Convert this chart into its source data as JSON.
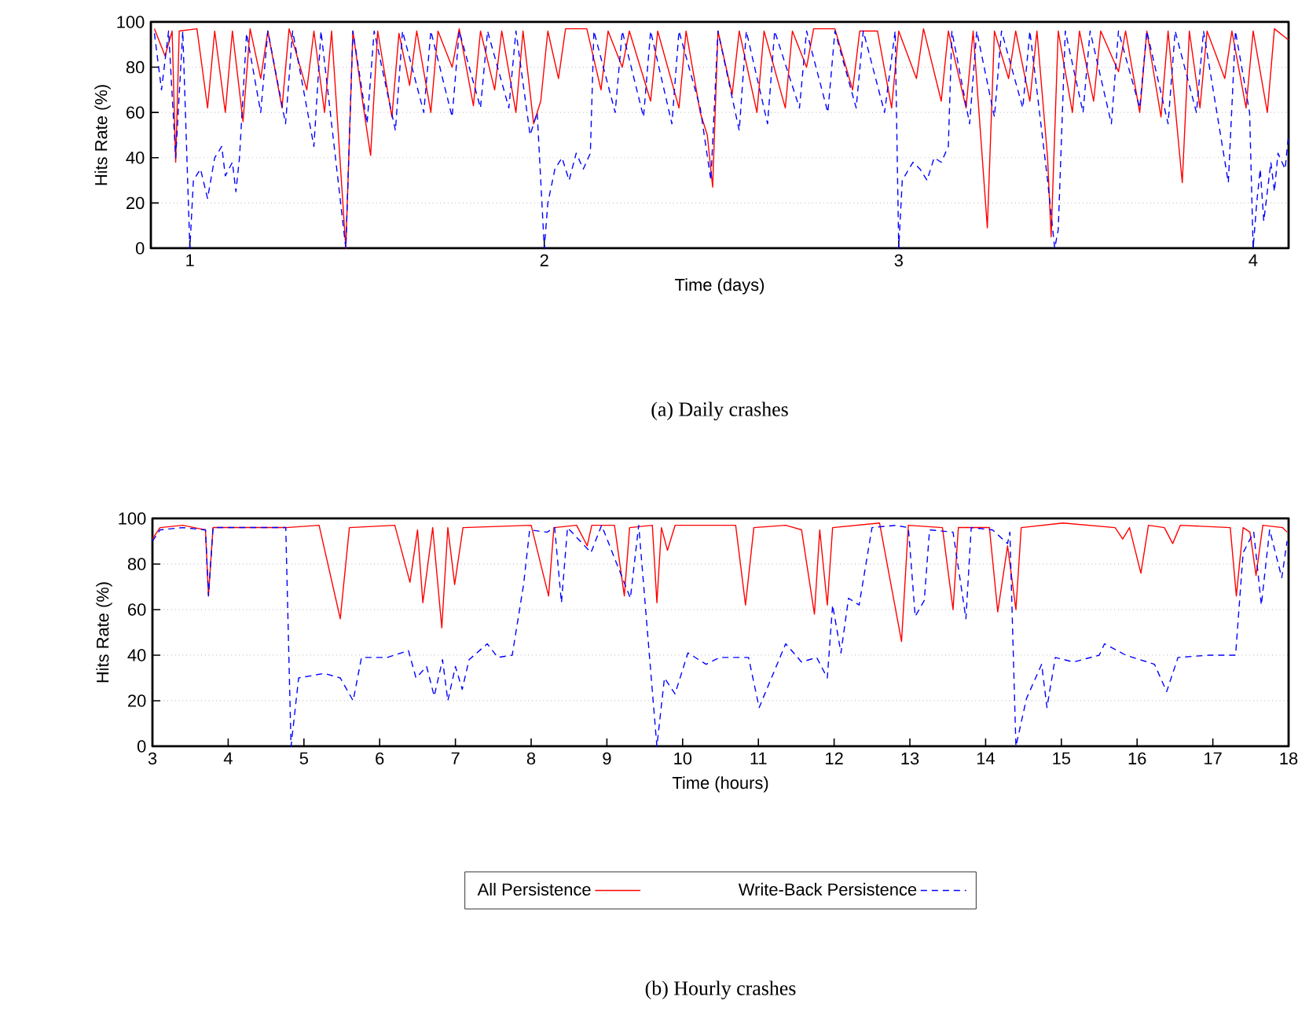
{
  "chart_data": [
    {
      "type": "line",
      "title": "(a) Daily crashes",
      "xlabel": "Time (days)",
      "ylabel": "Hits Rate (%)",
      "xlim": [
        0.89,
        4.1
      ],
      "xticks": [
        1,
        2,
        3,
        4
      ],
      "ylim": [
        0,
        100
      ],
      "yticks": [
        0,
        20,
        40,
        60,
        80,
        100
      ],
      "grid": "y",
      "series": [
        {
          "color": "#ff0000",
          "line_style": "solid",
          "x": [
            0.9,
            0.93,
            0.95,
            0.96,
            0.97,
            1.02,
            1.05,
            1.07,
            1.1,
            1.12,
            1.15,
            1.17,
            1.2,
            1.22,
            1.26,
            1.28,
            1.33,
            1.35,
            1.38,
            1.4,
            1.44,
            1.46,
            1.49,
            1.51,
            1.53,
            1.57,
            1.59,
            1.62,
            1.64,
            1.68,
            1.7,
            1.74,
            1.76,
            1.8,
            1.82,
            1.86,
            1.88,
            1.92,
            1.94,
            1.97,
            1.99,
            2.01,
            2.04,
            2.06,
            2.12,
            2.16,
            2.18,
            2.22,
            2.24,
            2.3,
            2.32,
            2.38,
            2.4,
            2.44,
            2.46,
            2.475,
            2.49,
            2.53,
            2.55,
            2.6,
            2.62,
            2.68,
            2.7,
            2.74,
            2.76,
            2.82,
            2.87,
            2.89,
            2.94,
            2.98,
            3.0,
            3.05,
            3.07,
            3.12,
            3.14,
            3.19,
            3.21,
            3.25,
            3.27,
            3.31,
            3.33,
            3.37,
            3.39,
            3.42,
            3.43,
            3.45,
            3.49,
            3.51,
            3.55,
            3.57,
            3.62,
            3.64,
            3.68,
            3.7,
            3.74,
            3.76,
            3.8,
            3.82,
            3.85,
            3.87,
            3.92,
            3.94,
            3.98,
            4.0,
            4.04,
            4.06,
            4.1
          ],
          "values": [
            97,
            85,
            96,
            38,
            96,
            97,
            62,
            96,
            60,
            96,
            56,
            97,
            75,
            96,
            62,
            97,
            70,
            96,
            60,
            96,
            0,
            96,
            62,
            41,
            96,
            58,
            95,
            72,
            96,
            60,
            96,
            80,
            97,
            63,
            96,
            70,
            96,
            60,
            96,
            55,
            65,
            96,
            75,
            97,
            97,
            70,
            96,
            80,
            96,
            65,
            96,
            62,
            96,
            60,
            50,
            27,
            96,
            68,
            96,
            60,
            96,
            62,
            96,
            80,
            97,
            97,
            70,
            96,
            96,
            62,
            96,
            75,
            97,
            65,
            96,
            62,
            96,
            9,
            96,
            75,
            96,
            65,
            96,
            40,
            5,
            96,
            60,
            96,
            65,
            96,
            78,
            96,
            60,
            96,
            58,
            96,
            29,
            96,
            62,
            96,
            75,
            96,
            62,
            96,
            60,
            97,
            92
          ]
        },
        {
          "color": "#0000ff",
          "line_style": "dashed",
          "x": [
            0.9,
            0.92,
            0.94,
            0.96,
            0.98,
            1.0,
            1.01,
            1.03,
            1.05,
            1.07,
            1.09,
            1.1,
            1.12,
            1.13,
            1.14,
            1.16,
            1.2,
            1.22,
            1.27,
            1.29,
            1.35,
            1.37,
            1.44,
            1.46,
            1.5,
            1.52,
            1.58,
            1.6,
            1.66,
            1.68,
            1.74,
            1.76,
            1.82,
            1.84,
            1.9,
            1.92,
            1.96,
            1.98,
            2.0,
            2.01,
            2.03,
            2.05,
            2.07,
            2.09,
            2.11,
            2.13,
            2.14,
            2.2,
            2.22,
            2.28,
            2.3,
            2.36,
            2.38,
            2.44,
            2.47,
            2.49,
            2.55,
            2.57,
            2.63,
            2.65,
            2.72,
            2.74,
            2.8,
            2.82,
            2.88,
            2.9,
            2.96,
            2.99,
            3.0,
            3.01,
            3.04,
            3.06,
            3.08,
            3.1,
            3.12,
            3.14,
            3.15,
            3.2,
            3.22,
            3.27,
            3.29,
            3.35,
            3.37,
            3.42,
            3.44,
            3.45,
            3.47,
            3.52,
            3.54,
            3.6,
            3.62,
            3.68,
            3.7,
            3.76,
            3.78,
            3.84,
            3.86,
            3.93,
            3.95,
            3.99,
            4.0,
            4.01,
            4.02,
            4.03,
            4.05,
            4.06,
            4.07,
            4.09,
            4.1
          ],
          "values": [
            95,
            70,
            96,
            40,
            96,
            0,
            30,
            35,
            22,
            40,
            45,
            32,
            38,
            25,
            40,
            95,
            60,
            96,
            55,
            96,
            45,
            96,
            0,
            96,
            55,
            96,
            52,
            96,
            60,
            96,
            58,
            96,
            62,
            96,
            62,
            96,
            50,
            60,
            0,
            20,
            35,
            40,
            30,
            42,
            35,
            42,
            96,
            60,
            96,
            58,
            96,
            55,
            96,
            62,
            30,
            96,
            52,
            96,
            55,
            96,
            62,
            96,
            60,
            96,
            62,
            96,
            60,
            96,
            0,
            30,
            38,
            35,
            30,
            40,
            38,
            45,
            96,
            55,
            96,
            58,
            96,
            62,
            96,
            30,
            0,
            8,
            96,
            60,
            96,
            55,
            96,
            62,
            96,
            55,
            96,
            60,
            96,
            29,
            96,
            60,
            0,
            20,
            35,
            12,
            38,
            25,
            42,
            35,
            50
          ]
        }
      ]
    },
    {
      "type": "line",
      "title": "(b) Hourly crashes",
      "xlabel": "Time (hours)",
      "ylabel": "Hits Rate (%)",
      "xlim": [
        3,
        18
      ],
      "xticks": [
        3,
        4,
        5,
        6,
        7,
        8,
        9,
        10,
        11,
        12,
        13,
        14,
        15,
        16,
        17,
        18
      ],
      "ylim": [
        0,
        100
      ],
      "yticks": [
        0,
        20,
        40,
        60,
        80,
        100
      ],
      "grid": "y",
      "legend": "bottom",
      "series": [
        {
          "name": "All Persistence",
          "color": "#ff0000",
          "line_style": "solid",
          "x": [
            3.0,
            3.1,
            3.4,
            3.7,
            3.74,
            3.8,
            4.2,
            4.76,
            5.2,
            5.48,
            5.6,
            6.2,
            6.4,
            6.5,
            6.57,
            6.7,
            6.82,
            6.9,
            6.99,
            7.1,
            8.0,
            8.23,
            8.3,
            8.6,
            8.74,
            8.8,
            9.1,
            9.23,
            9.3,
            9.6,
            9.66,
            9.72,
            9.8,
            9.9,
            10.49,
            10.7,
            10.83,
            10.94,
            11.36,
            11.57,
            11.74,
            11.81,
            11.91,
            11.98,
            12.6,
            12.89,
            12.98,
            13.43,
            13.57,
            13.64,
            14.05,
            14.16,
            14.29,
            14.4,
            14.47,
            15.02,
            15.71,
            15.81,
            15.9,
            16.05,
            16.15,
            16.36,
            16.47,
            16.57,
            17.23,
            17.31,
            17.4,
            17.49,
            17.57,
            17.66,
            17.92,
            17.98
          ],
          "values": [
            91,
            96,
            97,
            95,
            66,
            96,
            96,
            96,
            97,
            56,
            96,
            97,
            72,
            95,
            63,
            96,
            52,
            96,
            71,
            96,
            97,
            66,
            96,
            97,
            88,
            97,
            97,
            66,
            96,
            97,
            63,
            96,
            86,
            97,
            97,
            97,
            62,
            96,
            97,
            95,
            58,
            95,
            62,
            96,
            98,
            46,
            97,
            96,
            60,
            96,
            96,
            59,
            88,
            60,
            96,
            98,
            96,
            91,
            96,
            76,
            97,
            96,
            89,
            97,
            96,
            66,
            96,
            94,
            75,
            97,
            96,
            94
          ]
        },
        {
          "name": "Write-Back Persistence",
          "color": "#0000ff",
          "line_style": "dashed",
          "x": [
            3.0,
            3.1,
            3.4,
            3.7,
            3.74,
            3.8,
            4.2,
            4.76,
            4.83,
            4.93,
            5.27,
            5.48,
            5.65,
            5.76,
            6.1,
            6.38,
            6.48,
            6.62,
            6.72,
            6.83,
            6.9,
            7.0,
            7.09,
            7.18,
            7.42,
            7.56,
            7.75,
            7.9,
            7.98,
            8.21,
            8.31,
            8.4,
            8.48,
            8.79,
            8.93,
            9.31,
            9.42,
            9.66,
            9.76,
            9.9,
            10.07,
            10.31,
            10.49,
            10.6,
            10.87,
            11.01,
            11.36,
            11.57,
            11.77,
            11.91,
            11.98,
            12.09,
            12.19,
            12.33,
            12.5,
            12.81,
            12.98,
            13.07,
            13.19,
            13.26,
            13.57,
            13.74,
            13.81,
            14.09,
            14.29,
            14.32,
            14.4,
            14.54,
            14.74,
            14.81,
            14.92,
            15.16,
            15.5,
            15.57,
            15.85,
            16.23,
            16.39,
            16.54,
            16.95,
            17.3,
            17.4,
            17.54,
            17.64,
            17.75,
            17.91,
            17.98
          ],
          "values": [
            90,
            95,
            96,
            95,
            66,
            96,
            96,
            96,
            0,
            30,
            32,
            30,
            20,
            39,
            39,
            42,
            30,
            35,
            22,
            38,
            20,
            35,
            25,
            38,
            45,
            39,
            40,
            71,
            95,
            94,
            96,
            63,
            96,
            85,
            97,
            65,
            97,
            0,
            30,
            23,
            41,
            36,
            39,
            39,
            39,
            17,
            45,
            37,
            39,
            30,
            62,
            41,
            65,
            62,
            96,
            97,
            96,
            57,
            64,
            95,
            94,
            56,
            96,
            95,
            89,
            94,
            0,
            21,
            36,
            17,
            39,
            37,
            40,
            45,
            40,
            36,
            24,
            39,
            40,
            40,
            85,
            94,
            62,
            95,
            74,
            90
          ]
        }
      ]
    }
  ]
}
